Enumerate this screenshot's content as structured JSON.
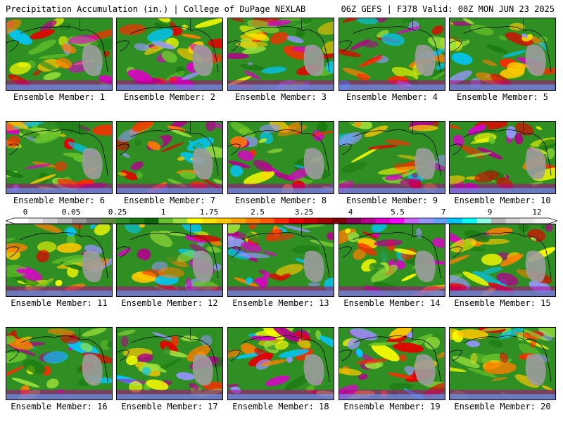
{
  "header": {
    "title": "Precipitation Accumulation (in.) | College of DuPage NEXLAB",
    "run_info": "06Z GEFS | F378 Valid: 00Z MON JUN 23 2025"
  },
  "members": [
    {
      "label": "Ensemble Member: 1"
    },
    {
      "label": "Ensemble Member: 2"
    },
    {
      "label": "Ensemble Member: 3"
    },
    {
      "label": "Ensemble Member: 4"
    },
    {
      "label": "Ensemble Member: 5"
    },
    {
      "label": "Ensemble Member: 6"
    },
    {
      "label": "Ensemble Member: 7"
    },
    {
      "label": "Ensemble Member: 8"
    },
    {
      "label": "Ensemble Member: 9"
    },
    {
      "label": "Ensemble Member: 10"
    },
    {
      "label": "Ensemble Member: 11"
    },
    {
      "label": "Ensemble Member: 12"
    },
    {
      "label": "Ensemble Member: 13"
    },
    {
      "label": "Ensemble Member: 14"
    },
    {
      "label": "Ensemble Member: 15"
    },
    {
      "label": "Ensemble Member: 16"
    },
    {
      "label": "Ensemble Member: 17"
    },
    {
      "label": "Ensemble Member: 18"
    },
    {
      "label": "Ensemble Member: 19"
    },
    {
      "label": "Ensemble Member: 20"
    }
  ],
  "scale": {
    "ticks": [
      "0",
      "0.05",
      "0.25",
      "1",
      "1.75",
      "2.5",
      "3.25",
      "4",
      "5.5",
      "7",
      "9",
      "12"
    ],
    "colors": [
      "#ffffff",
      "#e8e8e8",
      "#cfcfcf",
      "#b3b3b3",
      "#969696",
      "#7a7a7a",
      "#5e8a3c",
      "#2f8f23",
      "#1a7a12",
      "#0c640a",
      "#66c22a",
      "#9be03a",
      "#ffff00",
      "#ffe000",
      "#ffc800",
      "#ffa500",
      "#ff7f00",
      "#ff5a00",
      "#ff2a00",
      "#e60000",
      "#c80000",
      "#a50000",
      "#7d0000",
      "#8c005a",
      "#b4008c",
      "#dc00c8",
      "#ff00ff",
      "#c864ff",
      "#9696ff",
      "#64a0ff",
      "#00c8ff",
      "#00ffff",
      "#8cffe6",
      "#b4b4b4",
      "#d2d2d2",
      "#e6e6e6",
      "#f5f5f5"
    ]
  }
}
